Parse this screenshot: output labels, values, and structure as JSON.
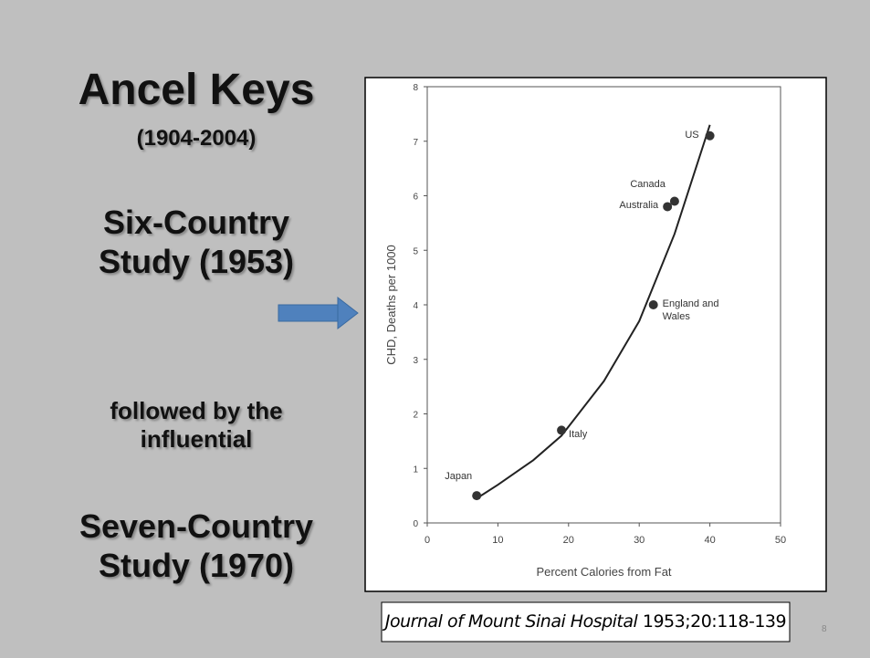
{
  "slide": {
    "title": "Ancel Keys",
    "dates": "(1904-2004)",
    "study1": "Six-Country Study (1953)",
    "transition": "followed by the influential",
    "study2": "Seven-Country Study (1970)",
    "citation": {
      "journal": "Journal of Mount Sinai Hospital",
      "reference": "1953;20:118-139"
    },
    "page_number": "8"
  },
  "chart_data": {
    "type": "scatter",
    "x_label": "Percent Calories from Fat",
    "y_label": "CHD, Deaths per 1000",
    "categories": [
      "Japan",
      "Italy",
      "England and Wales",
      "Australia",
      "Canada",
      "US"
    ],
    "x": [
      7,
      19,
      32,
      34,
      35,
      40
    ],
    "values": [
      0.5,
      1.7,
      4.0,
      5.8,
      5.9,
      7.1
    ],
    "color": "#333333",
    "curve": {
      "x": [
        7,
        10,
        15,
        19,
        25,
        30,
        35,
        40
      ],
      "values": [
        0.45,
        0.7,
        1.15,
        1.6,
        2.6,
        3.7,
        5.3,
        7.3
      ],
      "color": "#222222"
    },
    "xlim": [
      0,
      50
    ],
    "xticks": [
      0,
      10,
      20,
      30,
      40,
      50
    ],
    "ylim": [
      0,
      8
    ],
    "yticks": [
      0,
      1,
      2,
      3,
      4,
      5,
      6,
      7,
      8
    ]
  }
}
